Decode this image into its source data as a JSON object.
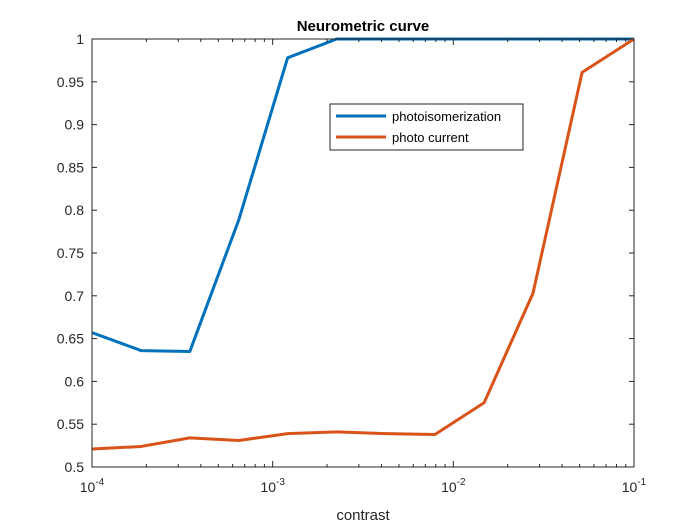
{
  "chart_data": {
    "type": "line",
    "title": "Neurometric curve",
    "xlabel": "contrast",
    "ylabel": "",
    "xscale": "log",
    "xlim": [
      0.0001,
      0.1
    ],
    "ylim": [
      0.5,
      1
    ],
    "grid": false,
    "legend_position": "upper-middle-right",
    "x_tick_labels": [
      {
        "value": 0.0001,
        "base": "10",
        "exp": "-4"
      },
      {
        "value": 0.001,
        "base": "10",
        "exp": "-3"
      },
      {
        "value": 0.01,
        "base": "10",
        "exp": "-2"
      },
      {
        "value": 0.1,
        "base": "10",
        "exp": "-1"
      }
    ],
    "y_ticks": [
      0.5,
      0.55,
      0.6,
      0.65,
      0.7,
      0.75,
      0.8,
      0.85,
      0.9,
      0.95,
      1
    ],
    "y_tick_labels": [
      "0.5",
      "0.55",
      "0.6",
      "0.65",
      "0.7",
      "0.75",
      "0.8",
      "0.85",
      "0.9",
      "0.95",
      "1"
    ],
    "x": [
      0.0001,
      0.000187,
      0.000348,
      0.00065,
      0.00121,
      0.00226,
      0.00423,
      0.00791,
      0.0148,
      0.0276,
      0.0516,
      0.1
    ],
    "series": [
      {
        "name": "photoisomerization",
        "color": "#0072BD",
        "values": [
          0.657,
          0.636,
          0.635,
          0.789,
          0.978,
          1.0,
          1.0,
          1.0,
          1.0,
          1.0,
          1.0,
          1.0
        ]
      },
      {
        "name": "photo current",
        "color": "#D95319",
        "values": [
          0.521,
          0.524,
          0.534,
          0.531,
          0.539,
          0.541,
          0.539,
          0.538,
          0.575,
          0.703,
          0.961,
          1.0
        ]
      }
    ]
  }
}
